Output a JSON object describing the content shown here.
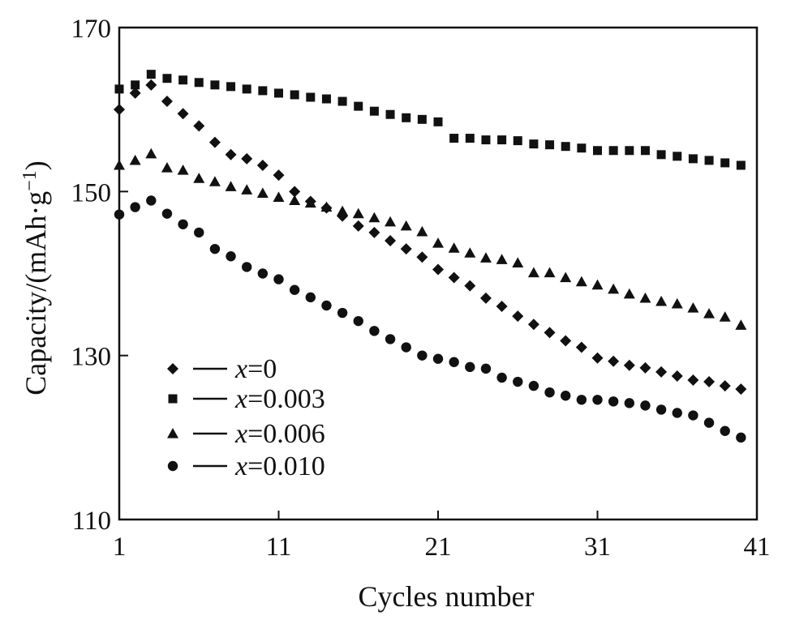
{
  "chart_data": {
    "type": "scatter",
    "xlabel": "Cycles number",
    "ylabel_main": "Capacity/(mAh·g",
    "ylabel_sup": "−1",
    "ylabel_close": ")",
    "xlim": [
      1,
      41
    ],
    "ylim": [
      110,
      170
    ],
    "x_ticks": [
      1,
      11,
      21,
      31,
      41
    ],
    "y_ticks": [
      110,
      130,
      150,
      170
    ],
    "grid": false,
    "legend_position": "lower-left",
    "series": [
      {
        "name": "x=0",
        "marker": "diamond",
        "x": [
          1,
          2,
          3,
          4,
          5,
          6,
          7,
          8,
          9,
          10,
          11,
          12,
          13,
          14,
          15,
          16,
          17,
          18,
          19,
          20,
          21,
          22,
          23,
          24,
          25,
          26,
          27,
          28,
          29,
          30,
          31,
          32,
          33,
          34,
          35,
          36,
          37,
          38,
          39,
          40
        ],
        "y": [
          160,
          162,
          163,
          161,
          159.5,
          158,
          156,
          154.5,
          154,
          153.2,
          152,
          150,
          148.8,
          148,
          147,
          145.8,
          145,
          144,
          143,
          142,
          140.5,
          139.5,
          138.5,
          137,
          136,
          134.8,
          133.8,
          132.8,
          131.8,
          131,
          129.7,
          129.3,
          128.8,
          128.5,
          128,
          127.5,
          127,
          126.8,
          126.3,
          125.9
        ]
      },
      {
        "name": "x=0.003",
        "marker": "square",
        "x": [
          1,
          2,
          3,
          4,
          5,
          6,
          7,
          8,
          9,
          10,
          11,
          12,
          13,
          14,
          15,
          16,
          17,
          18,
          19,
          20,
          21,
          22,
          23,
          24,
          25,
          26,
          27,
          28,
          29,
          30,
          31,
          32,
          33,
          34,
          35,
          36,
          37,
          38,
          39,
          40
        ],
        "y": [
          162.5,
          163,
          164.3,
          163.8,
          163.6,
          163.3,
          163,
          162.8,
          162.5,
          162.3,
          162,
          161.8,
          161.5,
          161.3,
          161,
          160.4,
          159.8,
          159.4,
          159,
          158.8,
          158.5,
          156.5,
          156.5,
          156.3,
          156.3,
          156.2,
          155.8,
          155.7,
          155.5,
          155.3,
          155,
          155,
          155,
          155,
          154.5,
          154.3,
          154,
          153.8,
          153.5,
          153.2
        ]
      },
      {
        "name": "x=0.006",
        "marker": "triangle",
        "x": [
          1,
          2,
          3,
          4,
          5,
          6,
          7,
          8,
          9,
          10,
          11,
          12,
          13,
          14,
          15,
          16,
          17,
          18,
          19,
          20,
          21,
          22,
          23,
          24,
          25,
          26,
          27,
          28,
          29,
          30,
          31,
          32,
          33,
          34,
          35,
          36,
          37,
          38,
          39,
          40
        ],
        "y": [
          153.2,
          153.8,
          154.6,
          152.9,
          152.6,
          151.6,
          151.2,
          150.6,
          150.2,
          149.8,
          149.3,
          148.9,
          148.6,
          148.1,
          147.6,
          147.3,
          146.8,
          146.3,
          145.8,
          145.1,
          143.7,
          143.1,
          142.5,
          141.9,
          141.7,
          141.3,
          140.1,
          140.1,
          139.5,
          139,
          138.6,
          138.1,
          137.5,
          137,
          136.6,
          136.3,
          135.8,
          135.1,
          134.7,
          133.7
        ]
      },
      {
        "name": "x=0.010",
        "marker": "circle",
        "x": [
          1,
          2,
          3,
          4,
          5,
          6,
          7,
          8,
          9,
          10,
          11,
          12,
          13,
          14,
          15,
          16,
          17,
          18,
          19,
          20,
          21,
          22,
          23,
          24,
          25,
          26,
          27,
          28,
          29,
          30,
          31,
          32,
          33,
          34,
          35,
          36,
          37,
          38,
          39,
          40
        ],
        "y": [
          147.2,
          148.1,
          148.9,
          147.3,
          146,
          145,
          143,
          142.1,
          140.8,
          140,
          139.3,
          138,
          137.1,
          136.1,
          135.2,
          134.2,
          133,
          132,
          131,
          130,
          129.6,
          129.2,
          128.6,
          128.4,
          127.3,
          126.8,
          126.3,
          125.5,
          125.1,
          124.6,
          124.6,
          124.4,
          124.2,
          123.9,
          123.4,
          123,
          122.7,
          121.8,
          120.8,
          120
        ]
      }
    ]
  }
}
